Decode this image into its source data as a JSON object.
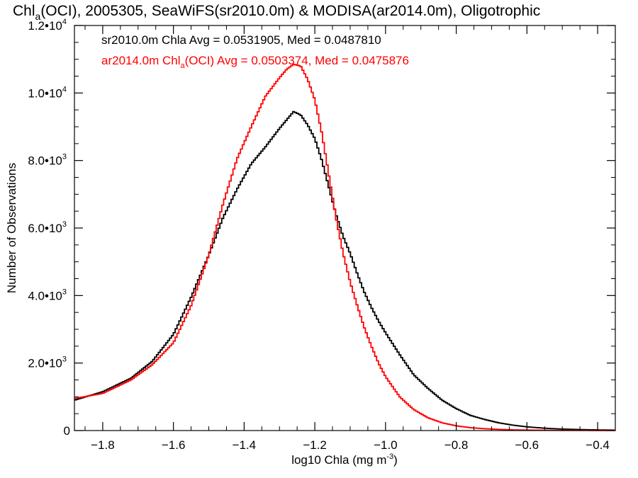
{
  "chart_data": {
    "type": "line",
    "title_parts": [
      "Chl",
      "a",
      "(OCI), 2005305, SeaWiFS(sr2010.0m) & MODISA(ar2014.0m), Oligotrophic"
    ],
    "xlabel_parts": [
      "log10 Chla (mg m",
      "-3",
      ")"
    ],
    "ylabel": "Number of Observations",
    "xlim": [
      -1.88,
      -0.35
    ],
    "ylim": [
      0,
      12000
    ],
    "x_ticks": [
      -1.8,
      -1.6,
      -1.4,
      -1.2,
      -1.0,
      -0.8,
      -0.6,
      -0.4
    ],
    "x_tick_labels": [
      "−1.8",
      "−1.6",
      "−1.4",
      "−1.2",
      "−1.0",
      "−0.8",
      "−0.6",
      "−0.4"
    ],
    "y_ticks": [
      0,
      2000,
      4000,
      6000,
      8000,
      10000,
      12000
    ],
    "y_tick_labels": [
      {
        "mant": "0",
        "exp": ""
      },
      {
        "mant": "2.0•10",
        "exp": "3"
      },
      {
        "mant": "4.0•10",
        "exp": "3"
      },
      {
        "mant": "6.0•10",
        "exp": "3"
      },
      {
        "mant": "8.0•10",
        "exp": "3"
      },
      {
        "mant": "1.0•10",
        "exp": "4"
      },
      {
        "mant": "1.2•10",
        "exp": "4"
      }
    ],
    "grid": false,
    "annotations": [
      {
        "parts": [
          "sr2010.0m Chla Avg = 0.0531905, Med = 0.0487810"
        ],
        "sub": "",
        "color": "#000000"
      },
      {
        "parts": [
          "ar2014.0m Chl",
          "(OCI) Avg = 0.0503374, Med = 0.0475876"
        ],
        "sub": "a",
        "color": "#ff0000"
      }
    ],
    "series": [
      {
        "color": "#000000",
        "x": [
          -1.88,
          -1.8,
          -1.72,
          -1.66,
          -1.6,
          -1.55,
          -1.5,
          -1.46,
          -1.42,
          -1.38,
          -1.34,
          -1.3,
          -1.28,
          -1.26,
          -1.24,
          -1.22,
          -1.2,
          -1.18,
          -1.16,
          -1.14,
          -1.12,
          -1.1,
          -1.08,
          -1.06,
          -1.04,
          -1.02,
          -1.0,
          -0.96,
          -0.92,
          -0.88,
          -0.84,
          -0.8,
          -0.76,
          -0.72,
          -0.68,
          -0.64,
          -0.6,
          -0.55,
          -0.5,
          -0.45,
          -0.4,
          -0.35
        ],
        "y": [
          900,
          1150,
          1550,
          2050,
          2850,
          3950,
          5200,
          6300,
          7150,
          7900,
          8400,
          8950,
          9200,
          9450,
          9350,
          9050,
          8650,
          8000,
          7200,
          6400,
          5750,
          5250,
          4650,
          4100,
          3650,
          3250,
          2900,
          2250,
          1650,
          1250,
          900,
          650,
          450,
          330,
          230,
          160,
          110,
          70,
          45,
          30,
          20,
          12
        ]
      },
      {
        "color": "#ff0000",
        "x": [
          -1.88,
          -1.8,
          -1.72,
          -1.66,
          -1.6,
          -1.55,
          -1.5,
          -1.46,
          -1.42,
          -1.38,
          -1.34,
          -1.3,
          -1.28,
          -1.26,
          -1.24,
          -1.22,
          -1.2,
          -1.18,
          -1.16,
          -1.14,
          -1.12,
          -1.1,
          -1.08,
          -1.06,
          -1.04,
          -1.02,
          -1.0,
          -0.96,
          -0.92,
          -0.88,
          -0.84,
          -0.8,
          -0.76,
          -0.72,
          -0.68,
          -0.64,
          -0.6,
          -0.55,
          -0.5,
          -0.45,
          -0.4,
          -0.35
        ],
        "y": [
          950,
          1100,
          1500,
          1950,
          2600,
          3700,
          5200,
          6700,
          8050,
          9000,
          9900,
          10450,
          10700,
          10850,
          10800,
          10400,
          9800,
          8800,
          7550,
          6300,
          5250,
          4400,
          3700,
          3050,
          2500,
          2000,
          1600,
          1000,
          620,
          380,
          230,
          140,
          85,
          55,
          35,
          22,
          15,
          10,
          7,
          5,
          4,
          3
        ]
      }
    ]
  }
}
